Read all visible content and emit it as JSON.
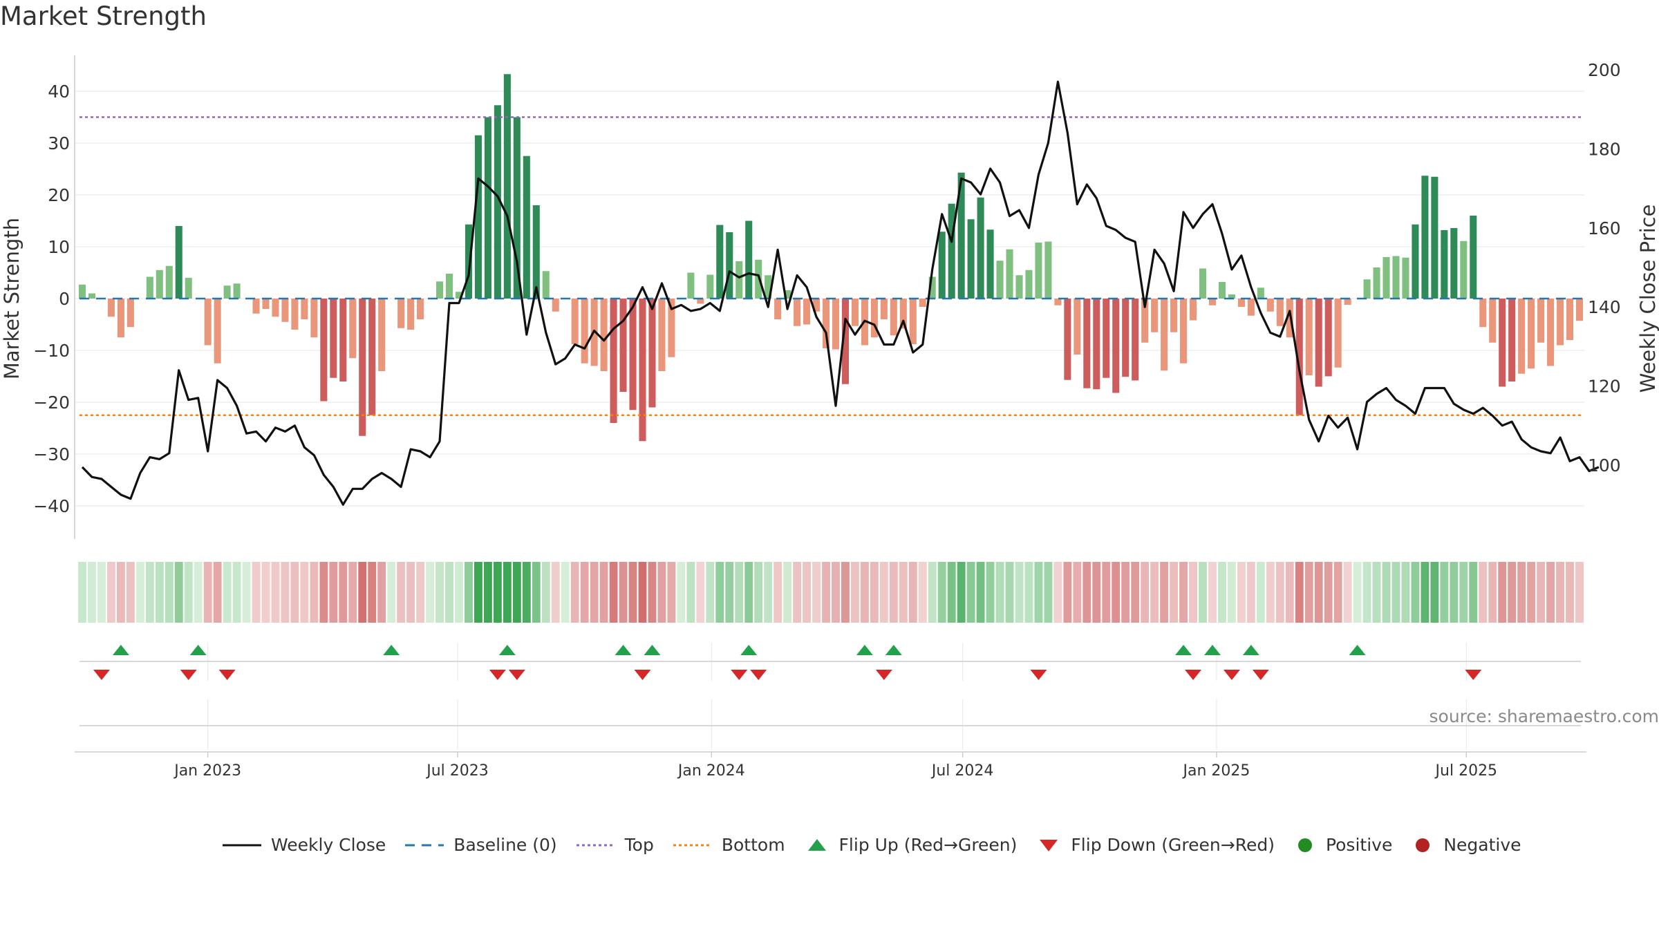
{
  "title": "Market Strength",
  "source_text": "source: sharemaestro.com",
  "colors": {
    "strong_green": "#2e8b57",
    "light_green": "#7fbf7f",
    "strong_red": "#cd5c5c",
    "light_red": "#e9967a",
    "close_line": "#111111",
    "baseline": "#1f77b4",
    "top_line": "#9467bd",
    "bottom_line": "#ff7f0e",
    "flip_up": "#22a04b",
    "flip_down": "#d62728",
    "positive": "#228b22",
    "negative": "#b22222"
  },
  "chart_data": {
    "type": "bar",
    "start_week": "2022-10-02",
    "xlabel": "",
    "ylabel": "Market Strength",
    "y2label": "Weekly Close Price",
    "ylim": [
      -46,
      48
    ],
    "y2lim": [
      78,
      204
    ],
    "yticks": [
      40,
      30,
      20,
      10,
      0,
      -10,
      -20,
      -30,
      -40
    ],
    "y2ticks": [
      200,
      180,
      160,
      140,
      120,
      100
    ],
    "xticks": [
      "Jan 2023",
      "Jul 2023",
      "Jan 2024",
      "Jul 2024",
      "Jan 2025",
      "Jul 2025"
    ],
    "xtick_dates": [
      "2023-01-01",
      "2023-07-01",
      "2024-01-01",
      "2024-07-01",
      "2025-01-01",
      "2025-07-01"
    ],
    "top_level": 35,
    "bottom_level": -22.5,
    "grid": true,
    "legend_position": "bottom",
    "strength": [
      2.7,
      1,
      0,
      -3.5,
      -7.5,
      -5.5,
      0,
      4.2,
      5.5,
      6.3,
      14,
      4,
      0,
      -9,
      -12.5,
      2.5,
      2.9,
      0,
      -2.9,
      -2,
      -3.5,
      -4.5,
      -6,
      -4,
      -7.5,
      -19.8,
      -15.3,
      -16,
      -11.5,
      -26.5,
      -22.5,
      -14,
      0,
      -5.7,
      -6,
      -4,
      0,
      3.3,
      4.8,
      1.3,
      14.3,
      31.5,
      35,
      37.3,
      43.3,
      35,
      27.5,
      18,
      5.3,
      -2.5,
      0,
      -8.8,
      -12.5,
      -13,
      -14,
      -24,
      -18,
      -21.5,
      -27.5,
      -21,
      -14,
      -11.3,
      0,
      5,
      -1,
      4.6,
      14.2,
      12.8,
      7.2,
      15,
      7.5,
      4.5,
      -4,
      1.6,
      -5.3,
      -5,
      -2.5,
      -9.6,
      -9.8,
      -16.5,
      -5.3,
      -9,
      -7.5,
      -4,
      -7.1,
      -5.8,
      -8.8,
      -1.6,
      4.2,
      12.9,
      18.3,
      24.3,
      15.3,
      19.5,
      13.3,
      7.3,
      9.5,
      4.5,
      5.5,
      10.8,
      11,
      -1.3,
      -15.7,
      -10.8,
      -17.3,
      -17.5,
      -15.3,
      -18.2,
      -15.1,
      -15.8,
      -8.5,
      -6.5,
      -13.9,
      -6.5,
      -12.5,
      -4.2,
      5.8,
      -1.3,
      3.2,
      0.8,
      -1.6,
      -3.3,
      2.1,
      -2.5,
      -5.3,
      -7.5,
      -22.5,
      -14.8,
      -17,
      -15,
      -13.3,
      -1.2,
      0,
      3.7,
      6,
      8,
      8.2,
      7.9,
      14.3,
      23.7,
      23.5,
      13.2,
      13.6,
      11.1,
      16,
      -5.5,
      -8.5,
      -17,
      -16,
      -14.5,
      -13.5,
      -8.5,
      -13,
      -9,
      -8,
      -4.3
    ],
    "close": [
      99.5,
      97,
      96.5,
      94.5,
      92.5,
      91.5,
      98,
      102,
      101.5,
      103,
      124,
      116.5,
      117,
      103.5,
      121.5,
      119.5,
      115,
      108,
      108.5,
      106,
      109.5,
      108.5,
      110,
      104.5,
      102.5,
      97.5,
      94.5,
      90,
      94,
      94,
      96.5,
      98,
      96.5,
      94.5,
      104,
      103.5,
      102,
      106,
      141,
      141,
      148,
      172.5,
      170.5,
      168,
      163,
      151.5,
      133,
      145,
      133.5,
      125.5,
      127,
      130.5,
      129.5,
      134,
      131.5,
      134.5,
      136.5,
      140,
      145,
      139.5,
      146,
      139.5,
      140.5,
      139,
      139.5,
      141,
      139,
      149,
      147.5,
      148.5,
      148,
      140,
      154.5,
      139.5,
      148,
      145,
      137.5,
      133.5,
      115,
      137,
      133,
      136.5,
      135.5,
      130.5,
      130.5,
      136.5,
      128.5,
      130.5,
      149.5,
      163.5,
      156.5,
      172.5,
      171.5,
      168.5,
      175,
      171.5,
      163,
      164.5,
      160,
      173.5,
      181.5,
      197,
      184,
      166,
      171,
      167.5,
      160.5,
      159.5,
      157.5,
      156.5,
      140,
      154.5,
      151,
      144,
      164,
      160,
      163.5,
      166,
      158.5,
      149.5,
      153,
      145,
      138.5,
      133.5,
      132.5,
      139,
      124,
      111.5,
      106,
      112.5,
      109.5,
      112,
      104,
      116,
      118,
      119.5,
      116.5,
      115,
      113,
      119.5,
      119.5,
      119.5,
      115.5,
      114,
      113,
      114.5,
      112.5,
      110,
      111,
      106.5,
      104.5,
      103.5,
      103,
      107,
      101,
      102,
      98.5,
      99.5
    ],
    "flip_up": [
      "2022-10-30",
      "2022-12-25",
      "2023-05-14",
      "2023-08-06",
      "2023-10-29",
      "2023-11-19",
      "2024-01-28",
      "2024-04-21",
      "2024-05-12",
      "2024-12-08",
      "2024-12-29",
      "2025-01-26",
      "2025-04-13"
    ],
    "flip_down": [
      "2022-10-16",
      "2022-12-18",
      "2023-01-15",
      "2023-07-30",
      "2023-08-13",
      "2023-11-12",
      "2024-01-21",
      "2024-02-04",
      "2024-05-05",
      "2024-08-25",
      "2024-12-15",
      "2025-01-12",
      "2025-02-02",
      "2025-07-06"
    ]
  },
  "legend": {
    "close": "Weekly Close",
    "baseline": "Baseline (0)",
    "top": "Top",
    "bottom": "Bottom",
    "flip_up": "Flip Up (Red→Green)",
    "flip_down": "Flip Down (Green→Red)",
    "positive": "Positive",
    "negative": "Negative"
  }
}
